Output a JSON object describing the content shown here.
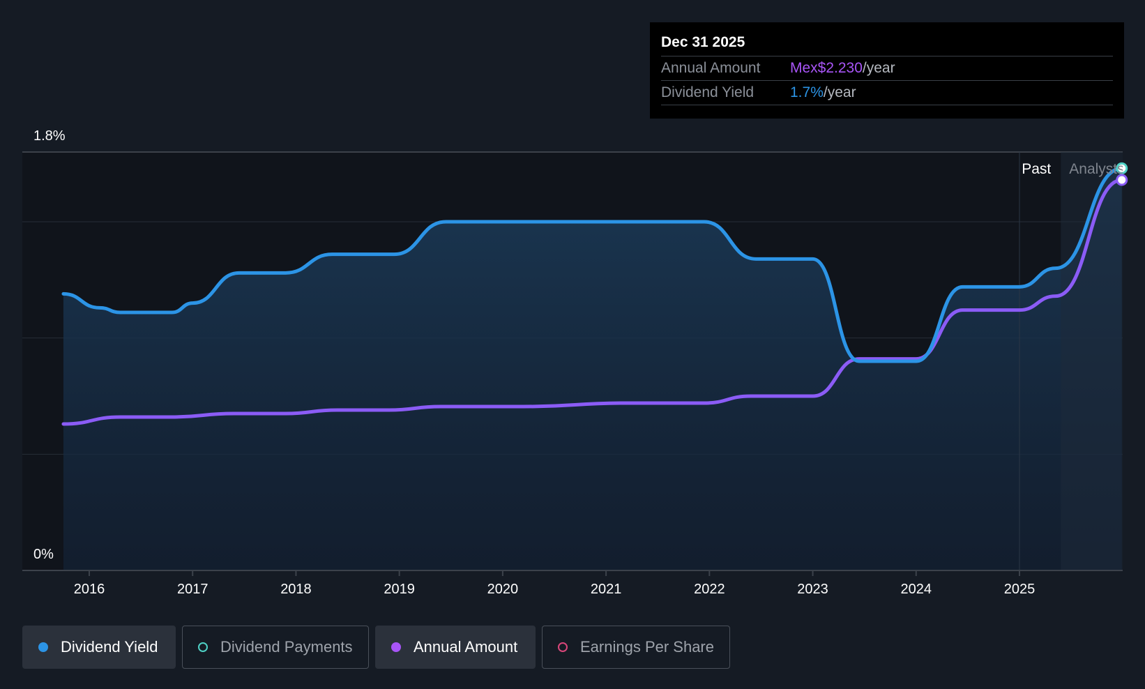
{
  "tooltip": {
    "date": "Dec 31 2025",
    "rows": [
      {
        "label": "Annual Amount",
        "value": "Mex$2.230",
        "unit": "/year"
      },
      {
        "label": "Dividend Yield",
        "value": "1.7%",
        "unit": "/year"
      }
    ]
  },
  "colors": {
    "background": "#151b24",
    "dividend_yield": "#2c94e6",
    "annual_amount": "#8b5cf6",
    "dividend_payments": "#4fd1c5",
    "earnings_per_share": "#d9467a"
  },
  "chart_data": {
    "type": "line",
    "ylim": [
      0,
      1.8
    ],
    "y_unit": "%",
    "y_tick_labels": [
      "1.8%",
      "0%"
    ],
    "x_tick_labels": [
      "2016",
      "2017",
      "2018",
      "2019",
      "2020",
      "2021",
      "2022",
      "2023",
      "2024",
      "2025"
    ],
    "xlim": [
      2015.0,
      2025.99
    ],
    "region_labels": {
      "past": "Past",
      "analysts": "Analysts"
    },
    "forecast_start": 2025.4,
    "grid": true,
    "series": [
      {
        "name": "Dividend Yield",
        "axis": "percent",
        "points": [
          [
            2015.75,
            1.19
          ],
          [
            2016.1,
            1.13
          ],
          [
            2016.3,
            1.11
          ],
          [
            2016.8,
            1.11
          ],
          [
            2017.0,
            1.15
          ],
          [
            2017.45,
            1.28
          ],
          [
            2017.9,
            1.28
          ],
          [
            2018.35,
            1.36
          ],
          [
            2018.95,
            1.36
          ],
          [
            2019.45,
            1.5
          ],
          [
            2021.95,
            1.5
          ],
          [
            2022.45,
            1.34
          ],
          [
            2023.0,
            1.34
          ],
          [
            2023.45,
            0.9
          ],
          [
            2024.0,
            0.9
          ],
          [
            2024.45,
            1.22
          ],
          [
            2025.0,
            1.22
          ],
          [
            2025.35,
            1.3
          ],
          [
            2025.99,
            1.73
          ]
        ]
      },
      {
        "name": "Annual Amount",
        "axis": "currency",
        "points": [
          [
            2015.75,
            0.63
          ],
          [
            2016.3,
            0.66
          ],
          [
            2016.8,
            0.66
          ],
          [
            2017.4,
            0.675
          ],
          [
            2017.9,
            0.675
          ],
          [
            2018.4,
            0.69
          ],
          [
            2018.9,
            0.69
          ],
          [
            2019.4,
            0.705
          ],
          [
            2020.2,
            0.705
          ],
          [
            2021.2,
            0.72
          ],
          [
            2021.95,
            0.72
          ],
          [
            2022.4,
            0.75
          ],
          [
            2023.0,
            0.75
          ],
          [
            2023.45,
            0.91
          ],
          [
            2024.0,
            0.91
          ],
          [
            2024.45,
            1.12
          ],
          [
            2025.0,
            1.12
          ],
          [
            2025.35,
            1.18
          ],
          [
            2025.99,
            1.68
          ]
        ]
      }
    ]
  },
  "legend": [
    {
      "label": "Dividend Yield",
      "active": true,
      "marker": "filled",
      "color": "#2c94e6"
    },
    {
      "label": "Dividend Payments",
      "active": false,
      "marker": "hollow",
      "color": "#4fd1c5"
    },
    {
      "label": "Annual Amount",
      "active": true,
      "marker": "filled",
      "color": "#a855f7"
    },
    {
      "label": "Earnings Per Share",
      "active": false,
      "marker": "hollow",
      "color": "#d9467a"
    }
  ]
}
